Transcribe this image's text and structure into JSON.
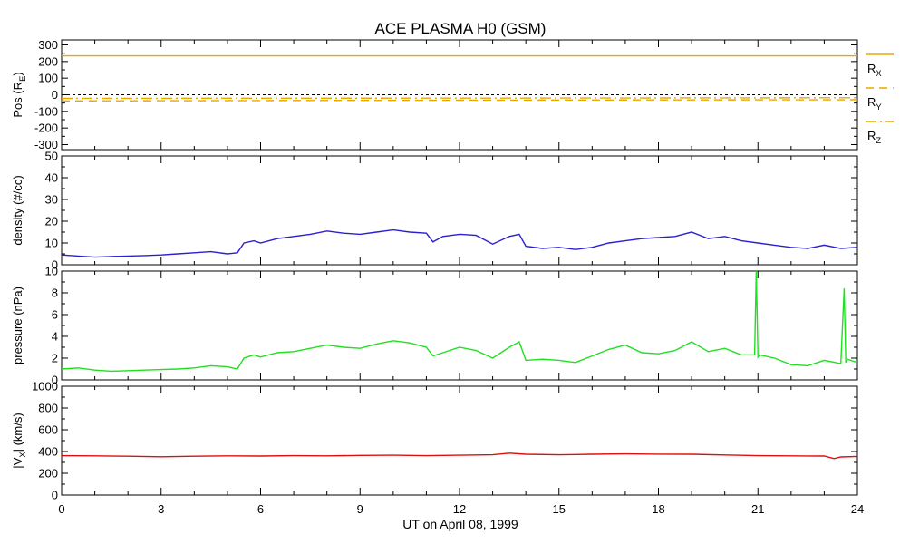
{
  "title": "ACE PLASMA H0 (GSM)",
  "x_axis": {
    "label": "UT on April 08, 1999",
    "range": [
      0,
      24
    ],
    "ticks": [
      0,
      3,
      6,
      9,
      12,
      15,
      18,
      21,
      24
    ],
    "tick_labels": [
      "0",
      "3",
      "6",
      "9",
      "12",
      "15",
      "18",
      "21",
      "24"
    ]
  },
  "chart_data": [
    {
      "type": "line",
      "ylabel": {
        "main": "Pos (R",
        "sub": "E",
        "tail": ")"
      },
      "ylim": [
        -330,
        330
      ],
      "yticks": [
        300,
        200,
        100,
        0,
        -100,
        -200,
        -300
      ],
      "ytick_labels": [
        "300",
        "200",
        "100",
        "0",
        "-100",
        "-200",
        "-300"
      ],
      "reference_line": 0,
      "series": [
        {
          "name": "R_X",
          "label": {
            "main": "R",
            "sub": "X"
          },
          "style": "solid",
          "color": "#e8a800",
          "x": [
            0,
            24
          ],
          "y": [
            234,
            234
          ]
        },
        {
          "name": "R_Y",
          "label": {
            "main": "R",
            "sub": "Y"
          },
          "style": "dashed",
          "color": "#e8a800",
          "x": [
            0,
            6,
            12,
            18,
            24
          ],
          "y": [
            -37,
            -35,
            -33,
            -31,
            -30
          ]
        },
        {
          "name": "R_Z",
          "label": {
            "main": "R",
            "sub": "Z"
          },
          "style": "dashdot",
          "color": "#e8a800",
          "x": [
            0,
            6,
            12,
            18,
            24
          ],
          "y": [
            -22,
            -21,
            -20,
            -19,
            -18
          ]
        }
      ]
    },
    {
      "type": "line",
      "ylabel": {
        "main": "density (#/cc)"
      },
      "ylim": [
        0,
        50
      ],
      "yticks": [
        50,
        40,
        30,
        20,
        10,
        0
      ],
      "ytick_labels": [
        "50",
        "40",
        "30",
        "20",
        "10",
        "0"
      ],
      "series": [
        {
          "name": "density",
          "color": "#2b1fd0",
          "x": [
            0,
            0.5,
            1,
            1.5,
            2,
            2.5,
            3,
            3.5,
            4,
            4.5,
            5,
            5.3,
            5.5,
            5.8,
            6,
            6.5,
            7,
            7.5,
            8,
            8.5,
            9,
            9.5,
            10,
            10.5,
            11,
            11.2,
            11.5,
            12,
            12.5,
            13,
            13.5,
            13.8,
            14,
            14.5,
            15,
            15.5,
            16,
            16.5,
            17,
            17.5,
            18,
            18.5,
            19,
            19.5,
            20,
            20.5,
            21,
            21.5,
            22,
            22.5,
            23,
            23.5,
            24
          ],
          "y": [
            4.5,
            4,
            3.5,
            3.8,
            4,
            4.2,
            4.5,
            5,
            5.5,
            6,
            5,
            5.5,
            10,
            11,
            10,
            12,
            13,
            14,
            15.5,
            14.5,
            14,
            15,
            16,
            15,
            14.5,
            10.5,
            13,
            14,
            13.5,
            9.5,
            13,
            14,
            8.5,
            7.5,
            8,
            7,
            8,
            10,
            11,
            12,
            12.5,
            13,
            15,
            12,
            13,
            11,
            10,
            9,
            8,
            7.5,
            9,
            7.5,
            8
          ]
        }
      ]
    },
    {
      "type": "line",
      "ylabel": {
        "main": "pressure (nPa)"
      },
      "ylim": [
        0,
        10
      ],
      "yticks": [
        10,
        8,
        6,
        4,
        2,
        0
      ],
      "ytick_labels": [
        "10",
        "8",
        "6",
        "4",
        "2",
        "0"
      ],
      "series": [
        {
          "name": "pressure",
          "color": "#20e020",
          "x": [
            0,
            0.5,
            1,
            1.5,
            2,
            2.5,
            3,
            3.5,
            4,
            4.5,
            5,
            5.3,
            5.5,
            5.8,
            6,
            6.5,
            7,
            7.5,
            8,
            8.5,
            9,
            9.5,
            10,
            10.5,
            11,
            11.2,
            11.5,
            12,
            12.5,
            13,
            13.5,
            13.8,
            14,
            14.5,
            15,
            15.5,
            16,
            16.5,
            17,
            17.5,
            18,
            18.5,
            19,
            19.5,
            20,
            20.5,
            20.9,
            20.95,
            21.0,
            21.05,
            21.5,
            22,
            22.5,
            23,
            23.5,
            23.6,
            23.65,
            23.7,
            24
          ],
          "y": [
            1,
            1.1,
            0.9,
            0.8,
            0.85,
            0.9,
            0.95,
            1,
            1.1,
            1.3,
            1.2,
            1,
            2,
            2.3,
            2.1,
            2.5,
            2.6,
            2.9,
            3.2,
            3,
            2.9,
            3.3,
            3.6,
            3.4,
            3,
            2.2,
            2.5,
            3,
            2.7,
            2,
            3,
            3.5,
            1.8,
            1.9,
            1.8,
            1.6,
            2.2,
            2.8,
            3.2,
            2.5,
            2.4,
            2.7,
            3.5,
            2.6,
            2.9,
            2.3,
            2.3,
            10,
            2.1,
            2.3,
            2,
            1.4,
            1.3,
            1.8,
            1.5,
            8.4,
            1.6,
            1.9,
            1.6
          ]
        }
      ]
    },
    {
      "type": "line",
      "ylabel": {
        "main": "|V",
        "sub": "X",
        "tail": "| (km/s)"
      },
      "ylim": [
        0,
        1000
      ],
      "yticks": [
        1000,
        800,
        600,
        400,
        200,
        0
      ],
      "ytick_labels": [
        "1000",
        "800",
        "600",
        "400",
        "200",
        "0"
      ],
      "series": [
        {
          "name": "|V_X|",
          "color": "#dd1010",
          "x": [
            0,
            1,
            2,
            3,
            4,
            5,
            6,
            7,
            8,
            9,
            10,
            11,
            12,
            13,
            13.5,
            14,
            15,
            16,
            17,
            18,
            19,
            20,
            21,
            22,
            23,
            23.3,
            23.5,
            24
          ],
          "y": [
            362,
            360,
            357,
            352,
            357,
            360,
            358,
            362,
            360,
            364,
            366,
            362,
            366,
            370,
            385,
            375,
            370,
            375,
            378,
            376,
            375,
            368,
            362,
            360,
            358,
            335,
            350,
            355
          ]
        }
      ]
    }
  ]
}
